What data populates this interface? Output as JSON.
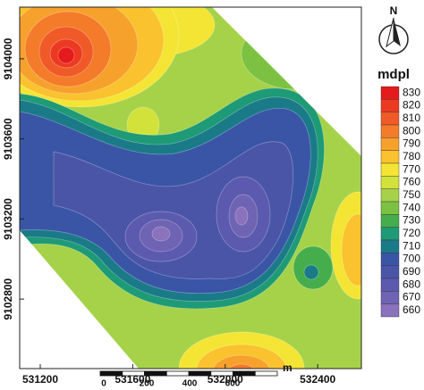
{
  "map": {
    "x_axis": {
      "lim": [
        531111,
        532589
      ],
      "ticks": [
        531200,
        531600,
        532000,
        532400
      ]
    },
    "y_axis": {
      "lim": [
        9102453,
        9104258
      ],
      "ticks": [
        9102800,
        9103200,
        9103600,
        9104000
      ]
    },
    "north": "N",
    "legend": {
      "title": "mdpl",
      "levels": [
        {
          "value": 830,
          "color": "#e41a1c"
        },
        {
          "value": 820,
          "color": "#ec3a22"
        },
        {
          "value": 810,
          "color": "#f05a28"
        },
        {
          "value": 800,
          "color": "#f47b2a"
        },
        {
          "value": 790,
          "color": "#f7a12d"
        },
        {
          "value": 780,
          "color": "#f9c22e"
        },
        {
          "value": 770,
          "color": "#f4e534"
        },
        {
          "value": 760,
          "color": "#d2e23a"
        },
        {
          "value": 750,
          "color": "#a6d24a"
        },
        {
          "value": 740,
          "color": "#7cc142"
        },
        {
          "value": 730,
          "color": "#46ad4c"
        },
        {
          "value": 720,
          "color": "#1e9a76"
        },
        {
          "value": 710,
          "color": "#1a7a88"
        },
        {
          "value": 700,
          "color": "#3a55a6"
        },
        {
          "value": 690,
          "color": "#4a55a8"
        },
        {
          "value": 680,
          "color": "#5b5aae"
        },
        {
          "value": 670,
          "color": "#6f63b3"
        },
        {
          "value": 660,
          "color": "#8a72bc"
        }
      ]
    },
    "scale_bar": {
      "labels": [
        0,
        200,
        400,
        600
      ],
      "unit": "m"
    }
  }
}
